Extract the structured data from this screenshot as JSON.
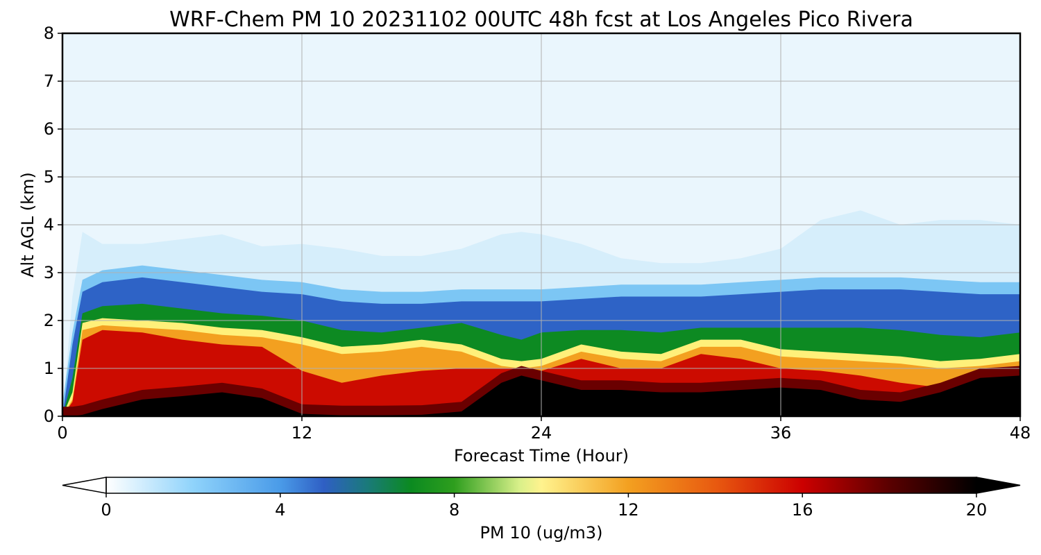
{
  "chart_data": {
    "type": "heatmap",
    "subtype": "filled-contour time-height cross section",
    "title": "WRF-Chem PM 10  20231102 00UTC 48h fcst at Los Angeles Pico Rivera",
    "xlabel": "Forecast Time (Hour)",
    "ylabel": "Alt AGL (km)",
    "xlim": [
      0,
      48
    ],
    "ylim": [
      0,
      8
    ],
    "xticks": [
      "0",
      "12",
      "24",
      "36",
      "48"
    ],
    "yticks": [
      "0",
      "1",
      "2",
      "3",
      "4",
      "5",
      "6",
      "7",
      "8"
    ],
    "grid": true,
    "colorbar": {
      "label": "PM 10  (ug/m3)",
      "range": [
        0,
        20
      ],
      "ticks": [
        "0",
        "4",
        "8",
        "12",
        "16",
        "20"
      ],
      "extend": "both",
      "stops": [
        {
          "value": 0,
          "color": "#ffffff"
        },
        {
          "value": 2,
          "color": "#8fd3fb"
        },
        {
          "value": 4,
          "color": "#4a9be8"
        },
        {
          "value": 5,
          "color": "#2f5fc4"
        },
        {
          "value": 6,
          "color": "#1a7a7a"
        },
        {
          "value": 7,
          "color": "#0b8a20"
        },
        {
          "value": 8,
          "color": "#2e9e1e"
        },
        {
          "value": 9.5,
          "color": "#d9f08a"
        },
        {
          "value": 10,
          "color": "#fff38e"
        },
        {
          "value": 12,
          "color": "#f3a020"
        },
        {
          "value": 14,
          "color": "#e85a10"
        },
        {
          "value": 16,
          "color": "#cc0000"
        },
        {
          "value": 18,
          "color": "#5a0000"
        },
        {
          "value": 20,
          "color": "#000000"
        }
      ]
    },
    "estimated_field": {
      "hours": [
        0,
        0.5,
        1,
        2,
        4,
        6,
        8,
        10,
        12,
        14,
        16,
        18,
        20,
        22,
        23,
        24,
        26,
        28,
        30,
        32,
        34,
        36,
        38,
        40,
        42,
        44,
        46,
        48
      ],
      "black_layer_top_km": [
        0,
        0,
        0.03,
        0.15,
        0.35,
        0.42,
        0.5,
        0.38,
        0.05,
        0.02,
        0.02,
        0.03,
        0.1,
        0.7,
        0.85,
        0.75,
        0.55,
        0.55,
        0.5,
        0.5,
        0.55,
        0.6,
        0.55,
        0.35,
        0.3,
        0.5,
        0.8,
        0.85
      ],
      "red_layer_top_km": [
        0,
        0.3,
        1.6,
        1.8,
        1.75,
        1.6,
        1.5,
        1.45,
        0.95,
        0.7,
        0.85,
        0.95,
        1.0,
        1.0,
        1.0,
        0.95,
        1.2,
        1.0,
        1.0,
        1.3,
        1.2,
        1.0,
        0.95,
        0.85,
        0.7,
        0.6,
        0.85,
        1.0
      ],
      "yellow_layer_top_km": [
        0,
        0.5,
        1.95,
        2.05,
        2.0,
        1.95,
        1.85,
        1.8,
        1.65,
        1.45,
        1.5,
        1.6,
        1.5,
        1.2,
        1.15,
        1.2,
        1.5,
        1.35,
        1.3,
        1.6,
        1.6,
        1.4,
        1.35,
        1.3,
        1.25,
        1.15,
        1.2,
        1.3
      ],
      "green_layer_top_km": [
        0,
        0.8,
        2.15,
        2.3,
        2.35,
        2.25,
        2.15,
        2.1,
        2.0,
        1.8,
        1.75,
        1.85,
        1.95,
        1.7,
        1.6,
        1.75,
        1.8,
        1.8,
        1.75,
        1.85,
        1.85,
        1.85,
        1.85,
        1.85,
        1.8,
        1.7,
        1.65,
        1.75
      ],
      "blue_layer_top_km": [
        0,
        1.5,
        2.6,
        2.8,
        2.9,
        2.8,
        2.7,
        2.6,
        2.55,
        2.4,
        2.35,
        2.35,
        2.4,
        2.4,
        2.4,
        2.4,
        2.45,
        2.5,
        2.5,
        2.5,
        2.55,
        2.6,
        2.65,
        2.65,
        2.65,
        2.6,
        2.55,
        2.55
      ],
      "light_blue_top_km": [
        0,
        2.5,
        3.85,
        3.6,
        3.6,
        3.7,
        3.8,
        3.55,
        3.6,
        3.5,
        3.35,
        3.35,
        3.5,
        3.8,
        3.85,
        3.8,
        3.6,
        3.3,
        3.2,
        3.2,
        3.3,
        3.5,
        4.1,
        4.3,
        4.0,
        4.1,
        4.1,
        4.0
      ]
    }
  }
}
